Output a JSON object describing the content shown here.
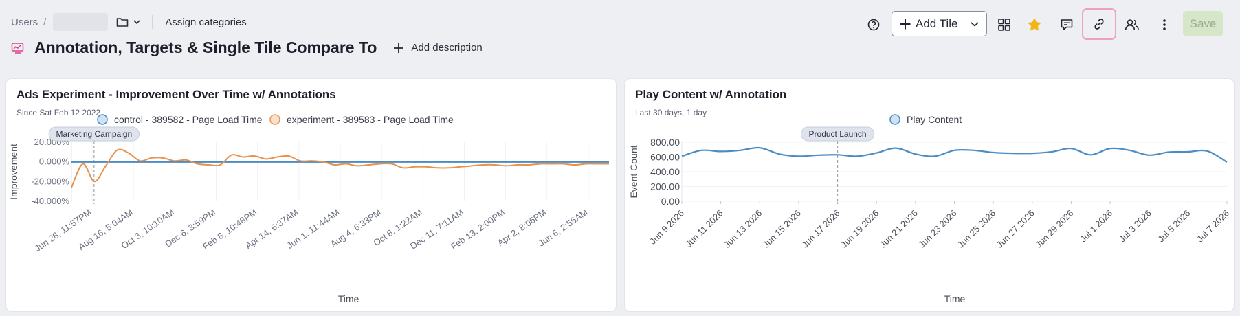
{
  "breadcrumb": {
    "root": "Users",
    "separator": "/"
  },
  "header": {
    "assign_categories": "Assign categories",
    "title": "Annotation, Targets & Single Tile Compare To",
    "add_description": "Add description"
  },
  "toolbar": {
    "add_tile": "Add Tile",
    "save": "Save"
  },
  "colors": {
    "accent_pink": "#e23f8f",
    "star": "#f3b416",
    "blue_series": "#4a8cc4",
    "orange_series": "#e8914a"
  },
  "card_left": {
    "title": "Ads Experiment - Improvement Over Time w/ Annotations",
    "subtitle": "Since Sat Feb 12 2022"
  },
  "card_right": {
    "title": "Play Content w/ Annotation",
    "subtitle": "Last 30 days, 1 day"
  },
  "chart_data": [
    {
      "type": "line",
      "title": "Ads Experiment - Improvement Over Time w/ Annotations",
      "subtitle": "Since Sat Feb 12 2022",
      "xlabel": "Time",
      "ylabel": "Improvement",
      "yticks": [
        "20.000%",
        "0.000%",
        "-20.000%",
        "-40.000%"
      ],
      "ylim": [
        -40,
        20
      ],
      "xticks": [
        "Jun 28, 11:57PM",
        "Aug 16, 5:04AM",
        "Oct 3, 10:10AM",
        "Dec 6, 3:59PM",
        "Feb 8, 10:48PM",
        "Apr 14, 6:37AM",
        "Jun 1, 11:44AM",
        "Aug 4, 6:33PM",
        "Oct 8, 1:22AM",
        "Dec 11, 7:11AM",
        "Feb 13, 2:00PM",
        "Apr 2, 8:06PM",
        "Jun 6, 2:55AM"
      ],
      "legend": "top-center",
      "annotation": {
        "label": "Marketing Campaign",
        "x_fraction": 0.042
      },
      "series": [
        {
          "name": "control - 389582 - Page Load Time",
          "color": "#4a8cc4",
          "values": [
            0,
            0,
            0,
            0,
            0,
            0,
            0,
            0,
            0,
            0,
            0,
            0,
            0,
            0,
            0,
            0,
            0,
            0,
            0,
            0,
            0,
            0,
            0,
            0,
            0,
            0,
            0,
            0,
            0,
            0,
            0,
            0,
            0,
            0,
            0,
            0,
            0,
            0,
            0,
            0,
            0,
            0,
            0,
            0,
            0,
            0,
            0,
            0
          ]
        },
        {
          "name": "experiment - 389583 - Page Load Time",
          "color": "#e8914a",
          "values": [
            -26,
            -2,
            -20,
            -4,
            12,
            9,
            1,
            4,
            4,
            1,
            2,
            -2,
            -3,
            -3,
            7,
            5,
            6,
            3,
            5,
            6,
            1,
            1,
            0,
            -3,
            -2,
            -4,
            -3,
            -2,
            -2,
            -6,
            -5,
            -5,
            -6,
            -6,
            -5,
            -4,
            -3,
            -3,
            -4,
            -3,
            -3,
            -2,
            -2,
            -2,
            -3,
            -2,
            -2,
            -2
          ]
        }
      ]
    },
    {
      "type": "line",
      "title": "Play Content w/ Annotation",
      "subtitle": "Last 30 days, 1 day",
      "xlabel": "Time",
      "ylabel": "Event Count",
      "ylim": [
        0,
        800
      ],
      "yticks": [
        "800.00",
        "600.00",
        "400.00",
        "200.00",
        "0.00"
      ],
      "xticks": [
        "Jun 9 2026",
        "Jun 11 2026",
        "Jun 13 2026",
        "Jun 15 2026",
        "Jun 17 2026",
        "Jun 19 2026",
        "Jun 21 2026",
        "Jun 23 2026",
        "Jun 25 2026",
        "Jun 27 2026",
        "Jun 29 2026",
        "Jul 1 2026",
        "Jul 3 2026",
        "Jul 5 2026",
        "Jul 7 2026"
      ],
      "legend": "top-center",
      "annotation": {
        "label": "Product Launch",
        "x": "Jun 17 2026"
      },
      "series": [
        {
          "name": "Play Content",
          "color": "#4a8cc4",
          "values": [
            610,
            690,
            675,
            690,
            725,
            640,
            610,
            625,
            630,
            610,
            655,
            720,
            640,
            610,
            690,
            690,
            660,
            650,
            650,
            670,
            715,
            630,
            715,
            690,
            625,
            665,
            670,
            680,
            530
          ]
        }
      ]
    }
  ]
}
